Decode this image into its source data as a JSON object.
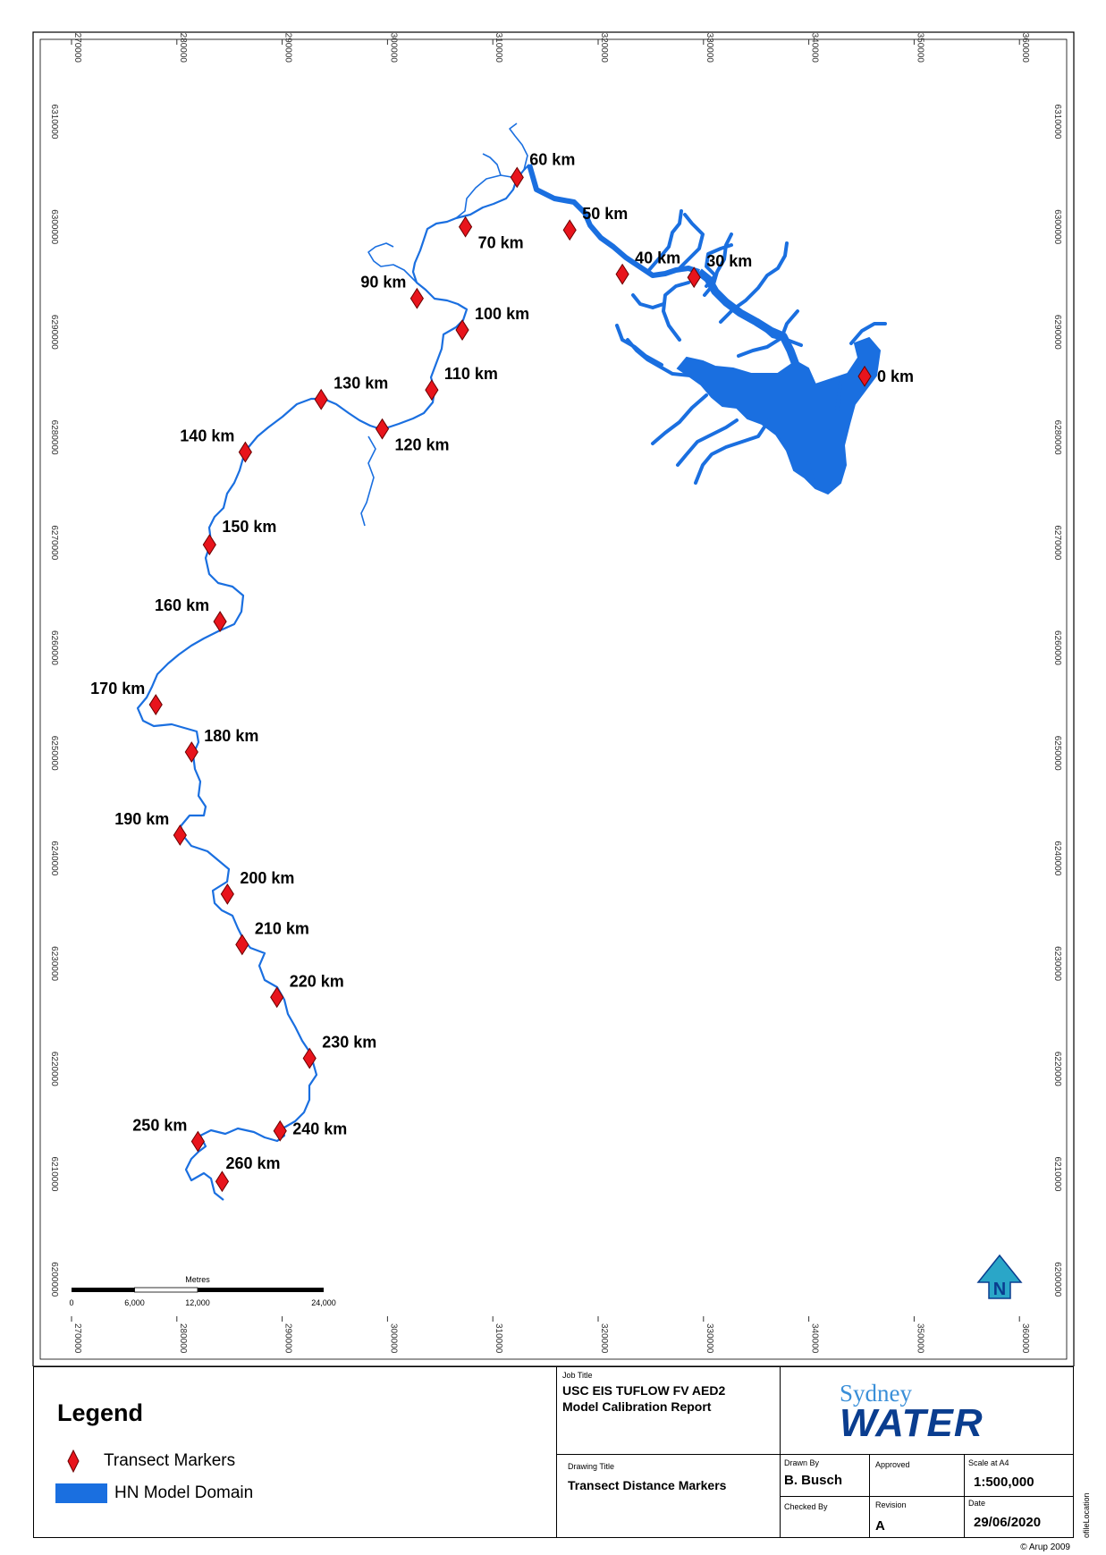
{
  "map": {
    "eastings": [
      "270000",
      "280000",
      "290000",
      "300000",
      "310000",
      "320000",
      "330000",
      "340000",
      "350000",
      "360000"
    ],
    "northings": [
      "6310000",
      "6300000",
      "6290000",
      "6280000",
      "6270000",
      "6260000",
      "6250000",
      "6240000",
      "6230000",
      "6220000",
      "6210000",
      "6200000"
    ],
    "colors": {
      "water": "#1a6fe0",
      "marker": "#e8141c",
      "marker_stroke": "#6a0000"
    },
    "markers": [
      {
        "label": "0 km",
        "easting": 345300,
        "northing": 6285800
      },
      {
        "label": "30 km",
        "easting": 329100,
        "northing": 6295200
      },
      {
        "label": "40 km",
        "easting": 322300,
        "northing": 6295500
      },
      {
        "label": "50 km",
        "easting": 317300,
        "northing": 6299700
      },
      {
        "label": "60 km",
        "easting": 312300,
        "northing": 6304700
      },
      {
        "label": "70 km",
        "easting": 307400,
        "northing": 6300000
      },
      {
        "label": "90 km",
        "easting": 302800,
        "northing": 6293200
      },
      {
        "label": "100 km",
        "easting": 307100,
        "northing": 6290200
      },
      {
        "label": "110 km",
        "easting": 304200,
        "northing": 6284500
      },
      {
        "label": "120 km",
        "easting": 299500,
        "northing": 6280800
      },
      {
        "label": "130 km",
        "easting": 293700,
        "northing": 6283600
      },
      {
        "label": "140 km",
        "easting": 286500,
        "northing": 6278600
      },
      {
        "label": "150 km",
        "easting": 283100,
        "northing": 6269800
      },
      {
        "label": "160 km",
        "easting": 284100,
        "northing": 6262500
      },
      {
        "label": "170 km",
        "easting": 278000,
        "northing": 6254600
      },
      {
        "label": "180 km",
        "easting": 281400,
        "northing": 6250100
      },
      {
        "label": "190 km",
        "easting": 280300,
        "northing": 6242200
      },
      {
        "label": "200 km",
        "easting": 284800,
        "northing": 6236600
      },
      {
        "label": "210 km",
        "easting": 286200,
        "northing": 6231800
      },
      {
        "label": "220 km",
        "easting": 289500,
        "northing": 6226800
      },
      {
        "label": "230 km",
        "easting": 292600,
        "northing": 6221000
      },
      {
        "label": "240 km",
        "easting": 289800,
        "northing": 6214100
      },
      {
        "label": "250 km",
        "easting": 282000,
        "northing": 6213100
      },
      {
        "label": "260 km",
        "easting": 284300,
        "northing": 6209300
      }
    ],
    "scale_bar": {
      "title": "Metres",
      "ticks": [
        "0",
        "6,000",
        "12,000",
        "24,000"
      ]
    }
  },
  "legend": {
    "title": "Legend",
    "items": [
      {
        "label": "Transect Markers",
        "symbol": "red-diamond"
      },
      {
        "label": "HN Model Domain",
        "symbol": "blue-fill"
      }
    ]
  },
  "title_block": {
    "job_title_caption": "Job Title",
    "job_title_line1": "USC EIS TUFLOW FV AED2",
    "job_title_line2": "Model Calibration Report",
    "drawing_title_caption": "Drawing Title",
    "drawing_title": "Transect Distance Markers",
    "drawn_by_caption": "Drawn By",
    "drawn_by": "B. Busch",
    "approved_caption": "Approved",
    "scale_caption": "Scale at A4",
    "scale": "1:500,000",
    "checked_by_caption": "Checked By",
    "revision_caption": "Revision",
    "revision": "A",
    "date_caption": "Date",
    "date": "29/06/2020",
    "logo_line1": "Sydney",
    "logo_line2": "WATER"
  },
  "footer": {
    "credit": "© Arup 2009",
    "file_location": "ofileLocation"
  }
}
